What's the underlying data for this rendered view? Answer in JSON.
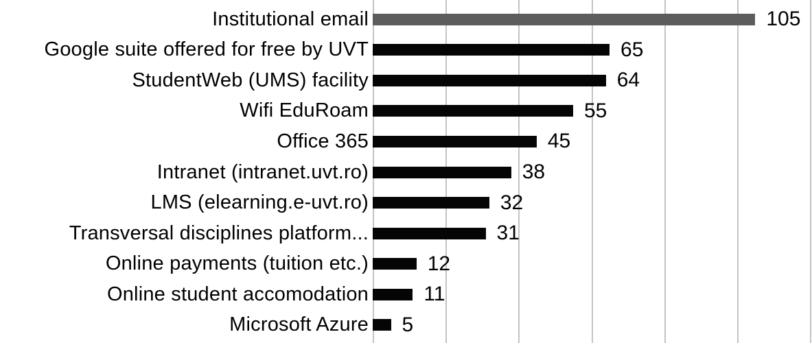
{
  "chart_data": {
    "type": "bar",
    "orientation": "horizontal",
    "title": "",
    "xlabel": "",
    "ylabel": "",
    "categories": [
      "Institutional email",
      "Google suite offered for free by UVT",
      "StudentWeb (UMS) facility",
      "Wifi EduRoam",
      "Office 365",
      "Intranet (intranet.uvt.ro)",
      "LMS (elearning.e-uvt.ro)",
      "Transversal disciplines platform...",
      "Online payments (tuition etc.)",
      "Online student accomodation",
      "Microsoft Azure"
    ],
    "values": [
      105,
      65,
      64,
      55,
      45,
      38,
      32,
      31,
      12,
      11,
      5
    ],
    "data_labels": [
      "105",
      "65",
      "64",
      "55",
      "45",
      "38",
      "32",
      "31",
      "12",
      "11",
      "5"
    ],
    "bar_colors": [
      "#5d5d5d",
      "#050505",
      "#050505",
      "#050505",
      "#050505",
      "#050505",
      "#050505",
      "#050505",
      "#050505",
      "#050505",
      "#050505"
    ],
    "xlim": [
      0,
      120
    ],
    "gridline_step": 20,
    "grid": "vertical-only",
    "legend": "none",
    "axis_tick_labels_visible": false
  },
  "colors": {
    "background": "#ffffff",
    "gridline": "#c4c4c4",
    "text": "#000000",
    "bar_highlight": "#5d5d5d",
    "bar_default": "#050505"
  }
}
